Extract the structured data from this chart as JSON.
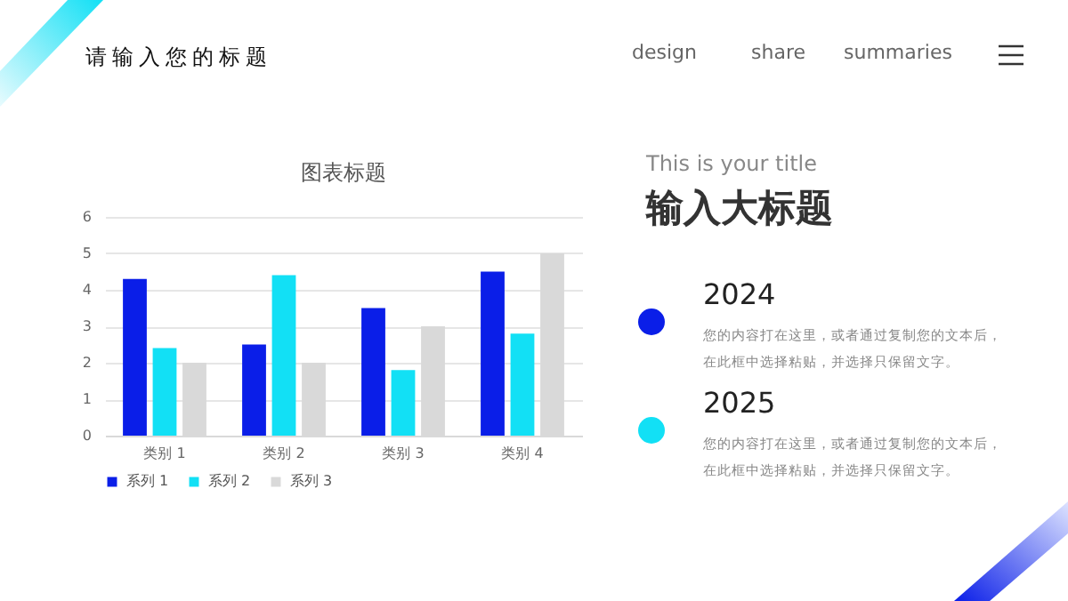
{
  "chart_data": {
    "type": "bar",
    "title": "图表标题",
    "categories": [
      "类别 1",
      "类别 2",
      "类别 3",
      "类别 4"
    ],
    "series": [
      {
        "name": "系列 1",
        "color": "#0a1ee8",
        "values": [
          4.3,
          2.5,
          3.5,
          4.5
        ]
      },
      {
        "name": "系列 2",
        "color": "#12e0f5",
        "values": [
          2.4,
          4.4,
          1.8,
          2.8
        ]
      },
      {
        "name": "系列 3",
        "color": "#d9d9d9",
        "values": [
          2,
          2,
          3,
          5
        ]
      }
    ],
    "ylim": [
      0,
      6
    ],
    "yticks": [
      0,
      1,
      2,
      3,
      4,
      5,
      6
    ],
    "grid": "y",
    "legend": "bottom",
    "annotations": [
      "请输入您的标题",
      "design",
      "share",
      "summaries",
      "This is your title",
      "输入大标题",
      "2024",
      "您的内容打在这里，或者通过复制您的文本后，在此框中选择粘贴，并选择只保留文字。",
      "2025",
      "您的内容打在这里，或者通过复制您的文本后，在此框中选择粘贴，并选择只保留文字。"
    ]
  }
}
